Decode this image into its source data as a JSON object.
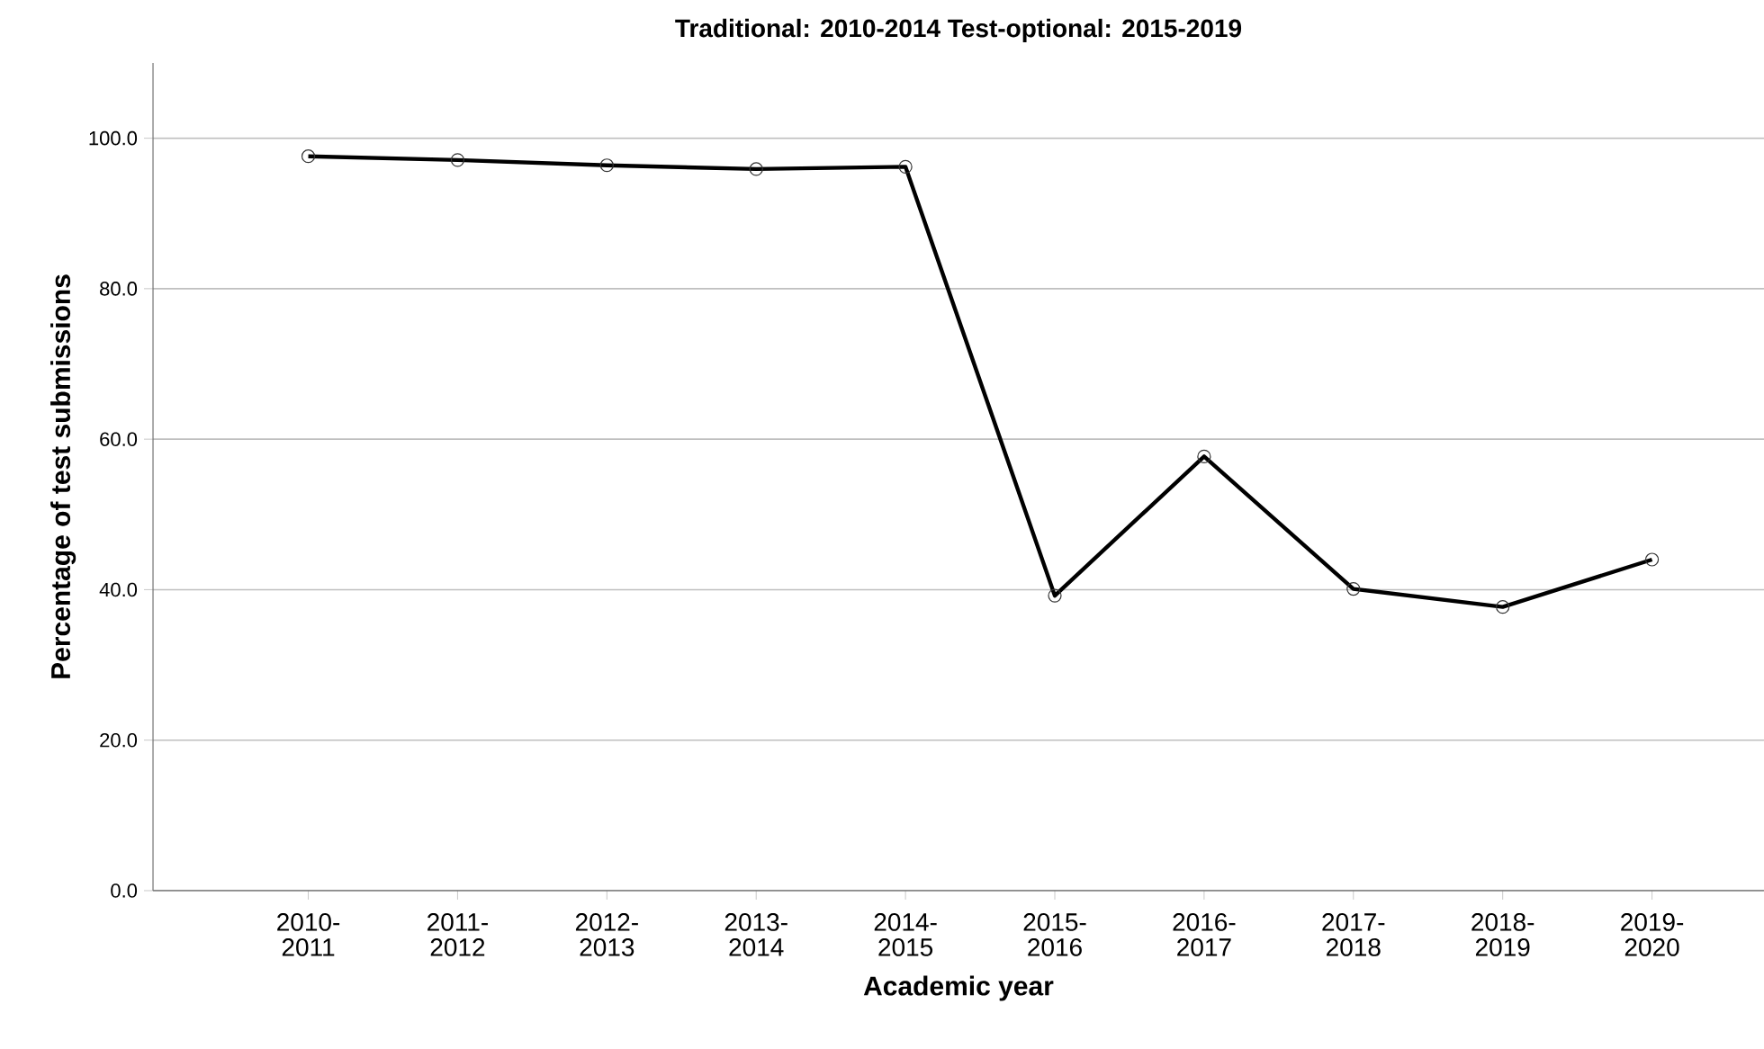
{
  "chart_data": {
    "type": "line",
    "title": "Traditional: 2010-2014   Test-optional: 2015-2019",
    "xlabel": "Academic year",
    "ylabel": "Percentage of test submissions",
    "categories": [
      "2010-2011",
      "2011-2012",
      "2012-2013",
      "2013-2014",
      "2014-2015",
      "2015-2016",
      "2016-2017",
      "2017-2018",
      "2018-2019",
      "2019-2020"
    ],
    "series": [
      {
        "color": "#000000",
        "values": [
          97.6,
          97.1,
          96.4,
          95.9,
          96.2,
          39.2,
          57.7,
          40.1,
          37.7,
          44.0
        ]
      }
    ],
    "ylim": [
      0,
      110
    ],
    "yticks": [
      {
        "value": 0,
        "label": "0.0"
      },
      {
        "value": 20,
        "label": "20.0"
      },
      {
        "value": 40,
        "label": "40.0"
      },
      {
        "value": 60,
        "label": "60.0"
      },
      {
        "value": 80,
        "label": "80.0"
      },
      {
        "value": 100,
        "label": "100.0"
      }
    ],
    "grid": "y",
    "marker": "circle",
    "line_style": "solid"
  }
}
